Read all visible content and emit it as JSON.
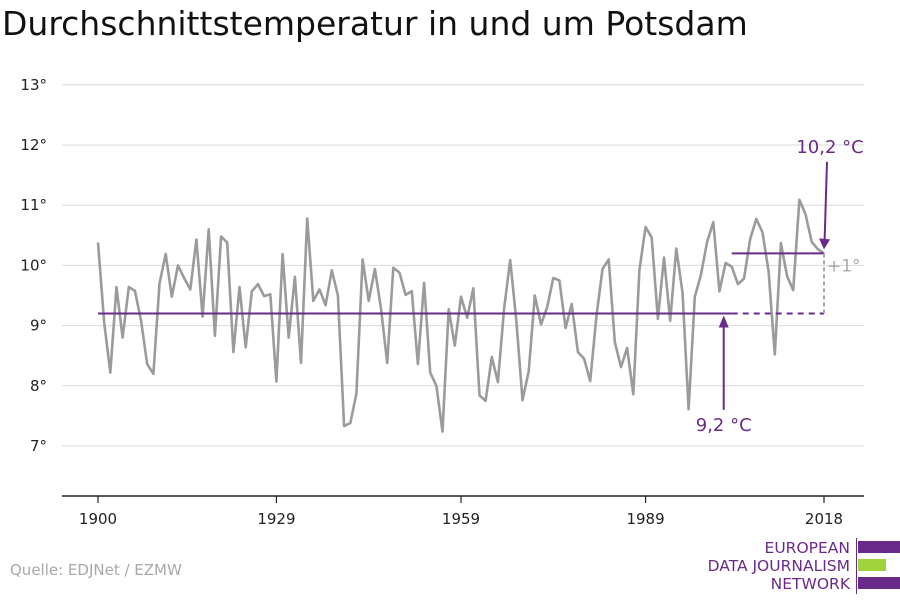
{
  "chart_data": {
    "type": "line",
    "title": "Durchschnittstemperatur in und um Potsdam",
    "x_ticks": [
      1900,
      1929,
      1959,
      1989,
      2018
    ],
    "y_ticks": [
      "7°",
      "8°",
      "9°",
      "10°",
      "11°",
      "12°",
      "13°"
    ],
    "xlim": [
      1900,
      2018
    ],
    "ylim": [
      6.2,
      13.5
    ],
    "grid": "horizontal",
    "series": [
      {
        "x": [
          1900,
          1901,
          1902,
          1903,
          1904,
          1905,
          1906,
          1907,
          1908,
          1909,
          1910,
          1911,
          1912,
          1913,
          1914,
          1915,
          1916,
          1917,
          1918,
          1919,
          1920,
          1921,
          1922,
          1923,
          1924,
          1925,
          1926,
          1927,
          1928,
          1929,
          1930,
          1931,
          1932,
          1933,
          1934,
          1935,
          1936,
          1937,
          1938,
          1939,
          1940,
          1941,
          1942,
          1943,
          1944,
          1945,
          1946,
          1947,
          1948,
          1949,
          1950,
          1951,
          1952,
          1953,
          1954,
          1955,
          1956,
          1957,
          1958,
          1959,
          1960,
          1961,
          1962,
          1963,
          1964,
          1965,
          1966,
          1967,
          1968,
          1969,
          1970,
          1971,
          1972,
          1973,
          1974,
          1975,
          1976,
          1977,
          1978,
          1979,
          1980,
          1981,
          1982,
          1983,
          1984,
          1985,
          1986,
          1987,
          1988,
          1989,
          1990,
          1991,
          1992,
          1993,
          1994,
          1995,
          1996,
          1997,
          1998,
          1999,
          2000,
          2001,
          2002,
          2003,
          2004,
          2005,
          2006,
          2007,
          2008,
          2009,
          2010,
          2011,
          2012,
          2013,
          2014,
          2015,
          2016,
          2017,
          2018
        ],
        "y": [
          10.38,
          9.05,
          8.22,
          9.64,
          8.8,
          9.64,
          9.58,
          9.08,
          8.36,
          8.2,
          9.7,
          10.19,
          9.48,
          10.0,
          9.79,
          9.6,
          10.43,
          9.15,
          10.6,
          8.83,
          10.48,
          10.38,
          8.56,
          9.64,
          8.64,
          9.57,
          9.69,
          9.49,
          9.52,
          8.07,
          10.19,
          8.8,
          9.81,
          8.38,
          10.78,
          9.41,
          9.6,
          9.34,
          9.92,
          9.5,
          7.33,
          7.38,
          7.87,
          10.1,
          9.41,
          9.94,
          9.28,
          8.38,
          9.96,
          9.88,
          9.51,
          9.57,
          8.36,
          9.71,
          8.22,
          8.0,
          7.24,
          9.27,
          8.67,
          9.48,
          9.13,
          9.62,
          7.84,
          7.75,
          8.48,
          8.06,
          9.28,
          10.09,
          9.07,
          7.76,
          8.24,
          9.5,
          9.02,
          9.3,
          9.79,
          9.75,
          8.96,
          9.36,
          8.56,
          8.45,
          8.08,
          9.15,
          9.94,
          10.1,
          8.73,
          8.31,
          8.63,
          7.86,
          9.92,
          10.64,
          10.46,
          9.11,
          10.13,
          9.08,
          10.28,
          9.55,
          7.61,
          9.48,
          9.84,
          10.39,
          10.72,
          9.57,
          10.04,
          9.98,
          9.69,
          9.78,
          10.44,
          10.77,
          10.55,
          9.9,
          8.52,
          10.37,
          9.82,
          9.59,
          11.09,
          10.85,
          10.39,
          10.27,
          10.2
        ]
      },
      {
        "name": "9,2 °C",
        "x": [
          1900,
          2003
        ],
        "y": [
          9.2,
          9.2
        ]
      },
      {
        "name": "10,2 °C",
        "x": [
          2003,
          2018
        ],
        "y": [
          10.2,
          10.2
        ]
      }
    ],
    "annotations": {
      "baseline_label": "9,2 °C",
      "recent_label": "10,2 °C",
      "difference_label": "+1°"
    },
    "colors": {
      "series": "#9b9b9b",
      "reference": "#6a2a8a",
      "difference": "#a8a8a8",
      "grid": "#d9d9d9",
      "axis": "#222222"
    }
  },
  "source": "Quelle: EDJNet / EZMW",
  "logo": {
    "line1": "EUROPEAN",
    "line2": "DATA JOURNALISM",
    "line3": "NETWORK",
    "colors": {
      "purple": "#6a2a8a",
      "green": "#9ed33a"
    }
  }
}
